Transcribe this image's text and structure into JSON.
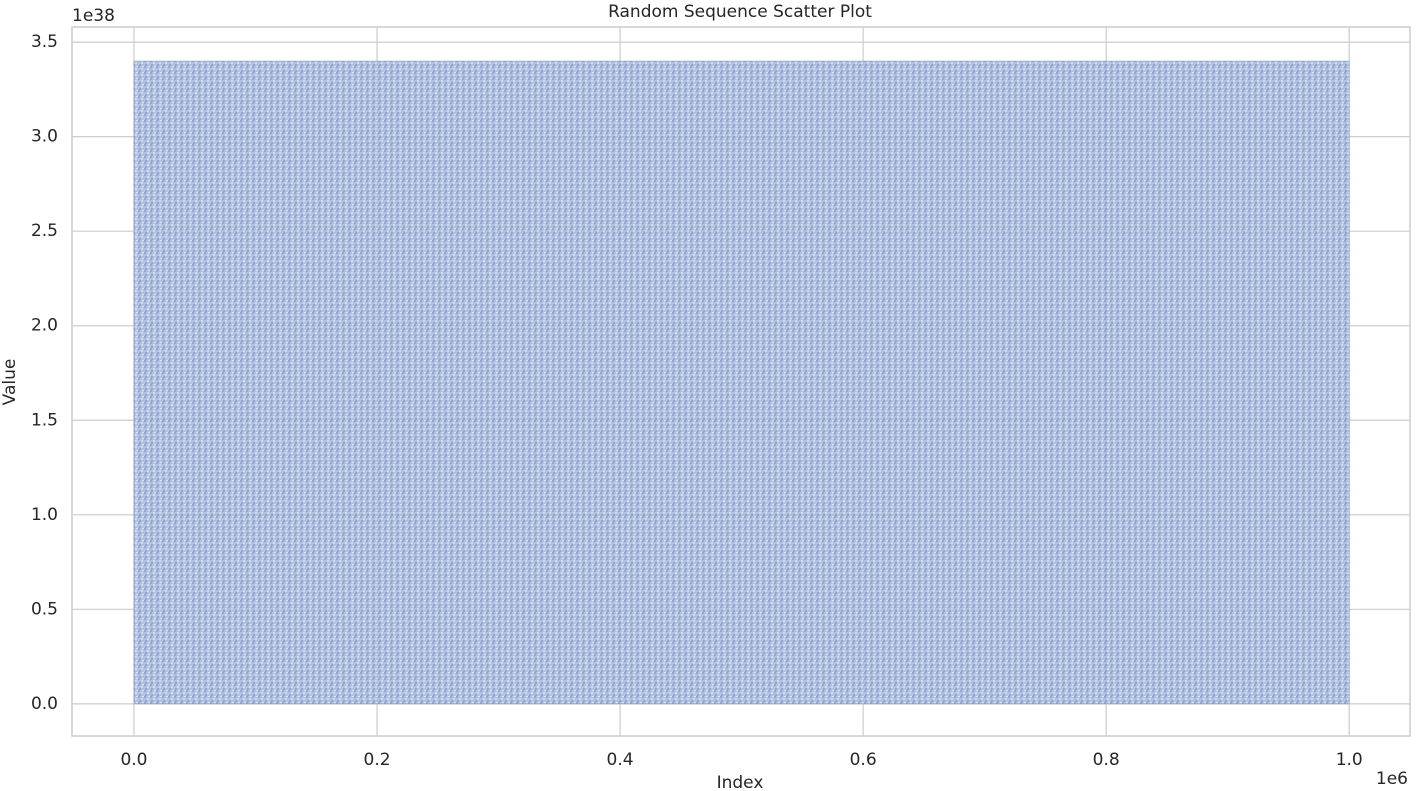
{
  "chart_data": {
    "type": "scatter",
    "title": "Random Sequence Scatter Plot",
    "x_label": "Index",
    "y_label": "Value",
    "x_offset_label": "1e6",
    "y_offset_label": "1e38",
    "series": [
      {
        "color": "#4c72b0",
        "x_extent": [
          0,
          1
        ],
        "y_extent": [
          0,
          3.4
        ]
      }
    ],
    "xlim": [
      -0.051,
      1.05
    ],
    "ylim": [
      -0.17,
      3.58
    ],
    "xticks": [
      {
        "value": 0,
        "label": "0.0"
      },
      0.2,
      0.4,
      0.6,
      0.8,
      {
        "value": 1,
        "label": "1.0"
      }
    ],
    "yticks": [
      {
        "value": 0,
        "label": "0.0"
      },
      0.5,
      {
        "value": 1,
        "label": "1.0"
      },
      1.5,
      {
        "value": 2,
        "label": "2.0"
      },
      2.5,
      {
        "value": 3,
        "label": "3.0"
      },
      3.5
    ],
    "grid": true
  }
}
